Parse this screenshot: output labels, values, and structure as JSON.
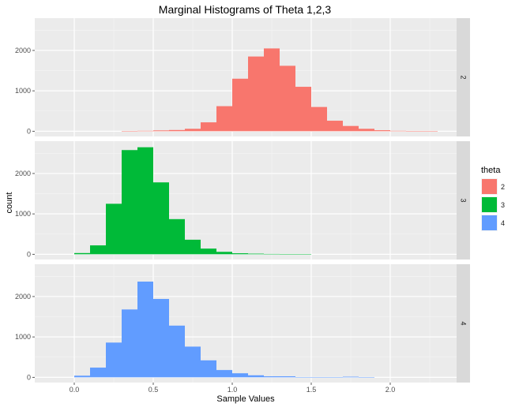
{
  "chart_data": {
    "type": "bar",
    "title": "Marginal Histograms of Theta 1,2,3",
    "xlabel": "Sample Values",
    "ylabel": "count",
    "legend_title": "theta",
    "legend_position": "right",
    "grid": true,
    "xlim": [
      -0.25,
      2.42
    ],
    "ylim": [
      -130,
      2800
    ],
    "x_ticks": [
      0.0,
      0.5,
      1.0,
      1.5,
      2.0
    ],
    "x_tick_labels": [
      "0.0",
      "0.5",
      "1.0",
      "1.5",
      "2.0"
    ],
    "y_ticks": [
      0,
      1000,
      2000
    ],
    "y_tick_labels": [
      "0",
      "1000",
      "2000"
    ],
    "bin_width": 0.1,
    "bin_starts": [
      0.0,
      0.1,
      0.2,
      0.3,
      0.4,
      0.5,
      0.6,
      0.7,
      0.8,
      0.9,
      1.0,
      1.1,
      1.2,
      1.3,
      1.4,
      1.5,
      1.6,
      1.7,
      1.8,
      1.9,
      2.0,
      2.1,
      2.2
    ],
    "series": [
      {
        "name": "2",
        "color": "#F8766D",
        "strip": "2",
        "counts": [
          0,
          0,
          0,
          5,
          10,
          20,
          30,
          60,
          220,
          620,
          1300,
          1850,
          2050,
          1620,
          1100,
          600,
          260,
          130,
          60,
          25,
          10,
          5,
          2
        ]
      },
      {
        "name": "3",
        "color": "#00BA38",
        "strip": "3",
        "counts": [
          30,
          220,
          1250,
          2580,
          2650,
          1780,
          870,
          360,
          140,
          60,
          25,
          15,
          8,
          4,
          2,
          0,
          0,
          0,
          0,
          0,
          0,
          0,
          0
        ]
      },
      {
        "name": "4",
        "color": "#619CFF",
        "strip": "4",
        "counts": [
          40,
          240,
          860,
          1680,
          2370,
          1940,
          1280,
          760,
          420,
          180,
          100,
          50,
          25,
          25,
          5,
          3,
          2,
          15,
          3,
          0,
          0,
          0,
          0
        ]
      }
    ]
  }
}
